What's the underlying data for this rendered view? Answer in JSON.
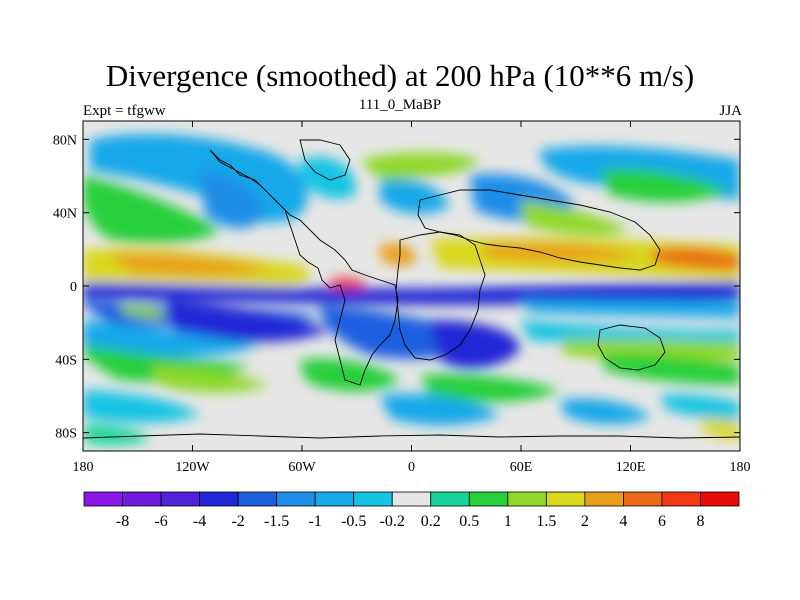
{
  "chart_data": {
    "type": "heatmap",
    "title": "Divergence (smoothed) at 200 hPa (10**6 m/s)",
    "left_label": "Expt = tfgww",
    "center_label": "111_0_MaBP",
    "right_label": "JJA",
    "xlabel": "",
    "ylabel": "",
    "xlim": [
      -180,
      180
    ],
    "ylim": [
      -90,
      90
    ],
    "x_ticks": [
      {
        "value": -180,
        "label": "180"
      },
      {
        "value": -120,
        "label": "120W"
      },
      {
        "value": -60,
        "label": "60W"
      },
      {
        "value": 0,
        "label": "0"
      },
      {
        "value": 60,
        "label": "60E"
      },
      {
        "value": 120,
        "label": "120E"
      },
      {
        "value": 180,
        "label": "180"
      }
    ],
    "y_ticks": [
      {
        "value": 80,
        "label": "80N"
      },
      {
        "value": 40,
        "label": "40N"
      },
      {
        "value": 0,
        "label": "0"
      },
      {
        "value": -40,
        "label": "40S"
      },
      {
        "value": -80,
        "label": "80S"
      }
    ],
    "colorbar": {
      "labels": [
        "-8",
        "-6",
        "-4",
        "-2",
        "-1.5",
        "-1",
        "-0.5",
        "-0.2",
        "0.2",
        "0.5",
        "1",
        "1.5",
        "2",
        "4",
        "6",
        "8"
      ],
      "colors": [
        "#8a17e8",
        "#6f1bd9",
        "#4f23d8",
        "#2126d6",
        "#1e5fe0",
        "#1e8ee8",
        "#17a8e8",
        "#18c4e3",
        "#e6e6e6",
        "#16d59a",
        "#27cf3a",
        "#8fd82a",
        "#d9d81e",
        "#e8a01c",
        "#ea6a19",
        "#ef3a14",
        "#e80d0d"
      ]
    }
  }
}
